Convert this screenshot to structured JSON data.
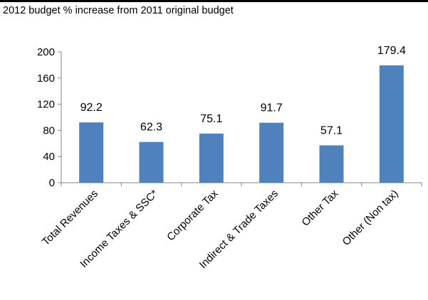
{
  "chart_data": {
    "type": "bar",
    "title": "2012 budget % increase from 2011 original budget",
    "categories": [
      "Total Revenues",
      "Income Taxes & SSC*",
      "Corporate Tax",
      "Indirect & Trade Taxes",
      "Other Tax",
      "Other (Non tax)"
    ],
    "values": [
      92.2,
      62.3,
      75.1,
      91.7,
      57.1,
      179.4
    ],
    "value_labels": [
      "92.2",
      "62.3",
      "75.1",
      "91.7",
      "57.1",
      "179.4"
    ],
    "ylim": [
      0,
      200
    ],
    "yticks": [
      0,
      40,
      80,
      120,
      160,
      200
    ],
    "ytick_labels": [
      "0",
      "40",
      "80",
      "120",
      "160",
      "200"
    ],
    "xlabel": "",
    "ylabel": "",
    "grid": false,
    "bar_color": "#4F81BD"
  }
}
